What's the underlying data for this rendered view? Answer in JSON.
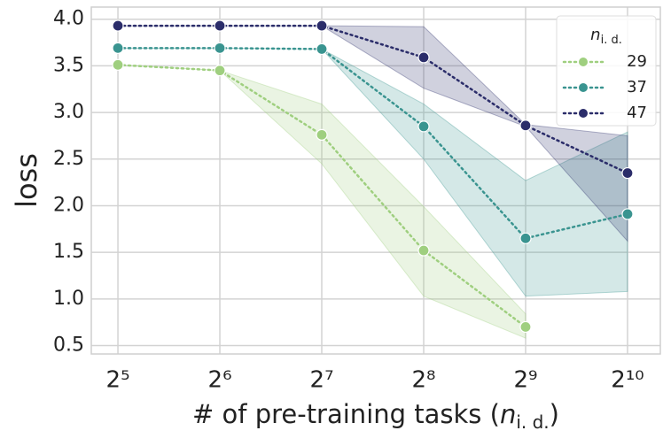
{
  "chart_data": {
    "type": "line",
    "x_label": {
      "text": "# of pre-training tasks (",
      "symbol": "n",
      "subscript": "i. d.",
      "close": ")"
    },
    "y_label": "loss",
    "x": [
      32,
      64,
      128,
      256,
      512,
      1024
    ],
    "xscale": "log",
    "xbase": 2,
    "xlim": [
      26.7,
      1280
    ],
    "xticks": [
      {
        "value": 32,
        "label": "2⁵"
      },
      {
        "value": 64,
        "label": "2⁶"
      },
      {
        "value": 128,
        "label": "2⁷"
      },
      {
        "value": 256,
        "label": "2⁸"
      },
      {
        "value": 512,
        "label": "2⁹"
      },
      {
        "value": 1024,
        "label": "2¹⁰"
      }
    ],
    "ylim": [
      0.41,
      4.13
    ],
    "yticks": [
      {
        "value": 0.5,
        "label": "0.5"
      },
      {
        "value": 1.0,
        "label": "1.0"
      },
      {
        "value": 1.5,
        "label": "1.5"
      },
      {
        "value": 2.0,
        "label": "2.0"
      },
      {
        "value": 2.5,
        "label": "2.5"
      },
      {
        "value": 3.0,
        "label": "3.0"
      },
      {
        "value": 3.5,
        "label": "3.5"
      },
      {
        "value": 4.0,
        "label": "4.0"
      }
    ],
    "grid": true,
    "legend": {
      "title": {
        "symbol": "n",
        "subscript": "i. d."
      },
      "position": "upper right"
    },
    "series": [
      {
        "name": "29",
        "color": "#9fcf7f",
        "values": [
          3.51,
          3.45,
          2.76,
          1.52,
          0.7,
          null
        ],
        "lower": [
          3.51,
          3.45,
          2.45,
          1.03,
          0.58,
          null
        ],
        "upper": [
          3.51,
          3.45,
          3.09,
          1.99,
          0.84,
          null
        ]
      },
      {
        "name": "37",
        "color": "#3a9490",
        "values": [
          3.69,
          3.69,
          3.68,
          2.85,
          1.65,
          1.91
        ],
        "lower": [
          3.69,
          3.69,
          3.68,
          2.5,
          1.03,
          1.08
        ],
        "upper": [
          3.69,
          3.69,
          3.68,
          3.09,
          2.27,
          2.79
        ]
      },
      {
        "name": "47",
        "color": "#2b2d6a",
        "values": [
          3.93,
          3.93,
          3.93,
          3.59,
          2.86,
          2.35
        ],
        "lower": [
          3.93,
          3.93,
          3.93,
          3.26,
          2.85,
          1.62
        ],
        "upper": [
          3.93,
          3.93,
          3.93,
          3.92,
          2.87,
          2.75
        ]
      }
    ]
  }
}
